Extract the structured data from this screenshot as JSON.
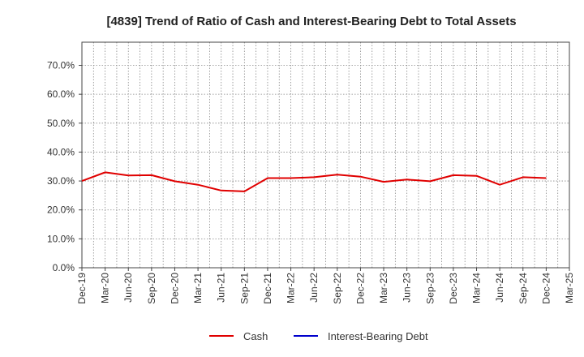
{
  "chart_data": {
    "type": "line",
    "title": "[4839]  Trend of Ratio of Cash and Interest-Bearing Debt to Total Assets",
    "xlabel": "",
    "ylabel": "",
    "ylim": [
      0,
      0.78
    ],
    "yticks": [
      0,
      0.1,
      0.2,
      0.3,
      0.4,
      0.5,
      0.6,
      0.7
    ],
    "ytick_labels": [
      "0.0%",
      "10.0%",
      "20.0%",
      "30.0%",
      "40.0%",
      "50.0%",
      "60.0%",
      "70.0%"
    ],
    "categories": [
      "Dec-19",
      "Mar-20",
      "Jun-20",
      "Sep-20",
      "Dec-20",
      "Mar-21",
      "Jun-21",
      "Sep-21",
      "Dec-21",
      "Mar-22",
      "Jun-22",
      "Sep-22",
      "Dec-22",
      "Mar-23",
      "Jun-23",
      "Sep-23",
      "Dec-23",
      "Mar-24",
      "Jun-24",
      "Sep-24",
      "Dec-24",
      "Mar-25"
    ],
    "grid": true,
    "legend_position": "bottom",
    "series": [
      {
        "name": "Cash",
        "color": "#e00000",
        "values": [
          0.3,
          0.33,
          0.319,
          0.32,
          0.299,
          0.287,
          0.267,
          0.264,
          0.31,
          0.31,
          0.313,
          0.322,
          0.315,
          0.297,
          0.305,
          0.299,
          0.32,
          0.318,
          0.287,
          0.313,
          0.31,
          null
        ]
      },
      {
        "name": "Interest-Bearing Debt",
        "color": "#0000cc",
        "values": [
          null,
          null,
          null,
          null,
          null,
          null,
          null,
          null,
          null,
          null,
          null,
          null,
          null,
          null,
          null,
          null,
          null,
          null,
          null,
          null,
          null,
          null
        ]
      }
    ]
  }
}
